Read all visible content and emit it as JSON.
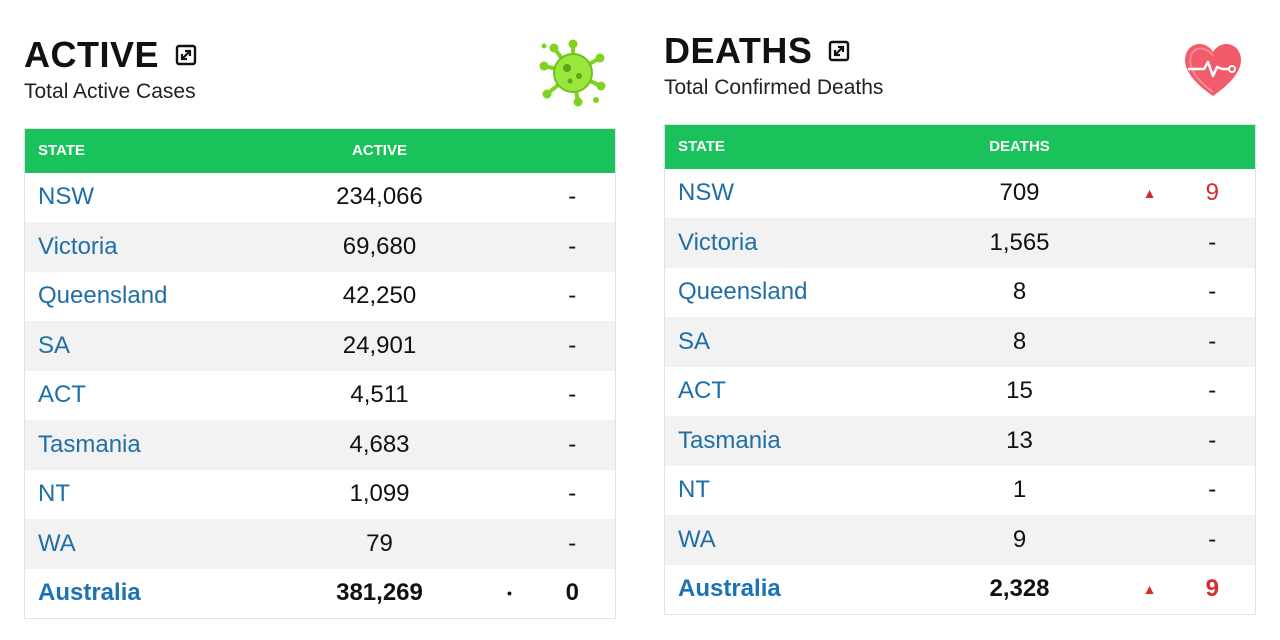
{
  "active": {
    "title": "ACTIVE",
    "subtitle": "Total Active Cases",
    "icon": "virus-icon",
    "accent": "#19c25a",
    "headers": {
      "state": "STATE",
      "value": "ACTIVE"
    },
    "rows": [
      {
        "state": "NSW",
        "value": "234,066",
        "trend": "",
        "change": "-"
      },
      {
        "state": "Victoria",
        "value": "69,680",
        "trend": "",
        "change": "-"
      },
      {
        "state": "Queensland",
        "value": "42,250",
        "trend": "",
        "change": "-"
      },
      {
        "state": "SA",
        "value": "24,901",
        "trend": "",
        "change": "-"
      },
      {
        "state": "ACT",
        "value": "4,511",
        "trend": "",
        "change": "-"
      },
      {
        "state": "Tasmania",
        "value": "4,683",
        "trend": "",
        "change": "-"
      },
      {
        "state": "NT",
        "value": "1,099",
        "trend": "",
        "change": "-"
      },
      {
        "state": "WA",
        "value": "79",
        "trend": "",
        "change": "-"
      }
    ],
    "total": {
      "state": "Australia",
      "value": "381,269",
      "trend": "•",
      "change": "0"
    }
  },
  "deaths": {
    "title": "DEATHS",
    "subtitle": "Total Confirmed Deaths",
    "icon": "heart-pulse-icon",
    "accent": "#19c25a",
    "up_color": "#d62b2b",
    "headers": {
      "state": "STATE",
      "value": "DEATHS"
    },
    "rows": [
      {
        "state": "NSW",
        "value": "709",
        "trend": "▲",
        "change": "9"
      },
      {
        "state": "Victoria",
        "value": "1,565",
        "trend": "",
        "change": "-"
      },
      {
        "state": "Queensland",
        "value": "8",
        "trend": "",
        "change": "-"
      },
      {
        "state": "SA",
        "value": "8",
        "trend": "",
        "change": "-"
      },
      {
        "state": "ACT",
        "value": "15",
        "trend": "",
        "change": "-"
      },
      {
        "state": "Tasmania",
        "value": "13",
        "trend": "",
        "change": "-"
      },
      {
        "state": "NT",
        "value": "1",
        "trend": "",
        "change": "-"
      },
      {
        "state": "WA",
        "value": "9",
        "trend": "",
        "change": "-"
      }
    ],
    "total": {
      "state": "Australia",
      "value": "2,328",
      "trend": "▲",
      "change": "9"
    }
  }
}
